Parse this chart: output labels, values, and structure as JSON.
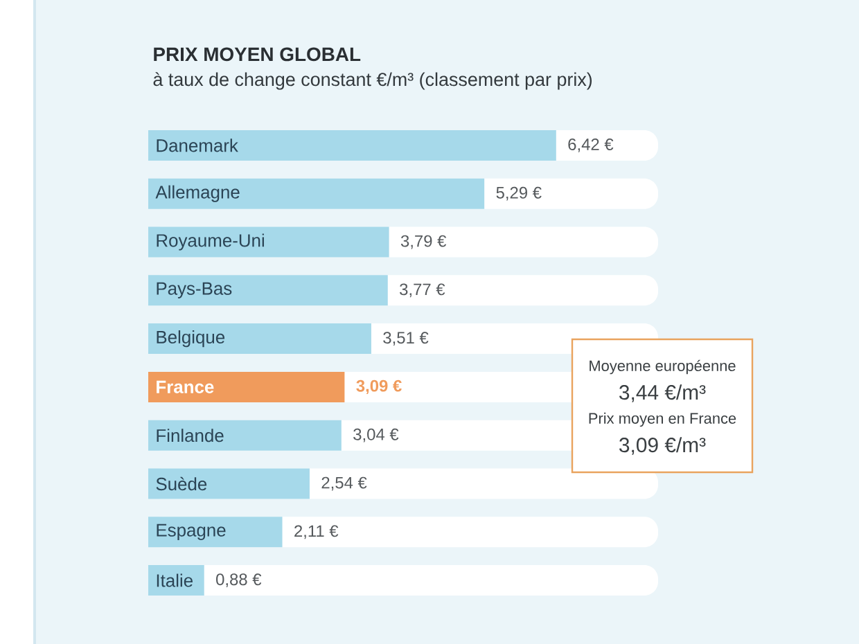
{
  "chart_data": {
    "type": "bar",
    "orientation": "horizontal",
    "title": "PRIX MOYEN GLOBAL",
    "subtitle": "à taux de change constant €/m³ (classement par prix)",
    "categories": [
      "Danemark",
      "Allemagne",
      "Royaume-Uni",
      "Pays-Bas",
      "Belgique",
      "France",
      "Finlande",
      "Suède",
      "Espagne",
      "Italie"
    ],
    "values": [
      6.42,
      5.29,
      3.79,
      3.77,
      3.51,
      3.09,
      3.04,
      2.54,
      2.11,
      0.88
    ],
    "value_labels": [
      "6,42 €",
      "5,29 €",
      "3,79 €",
      "3,77 €",
      "3,51 €",
      "3,09 €",
      "3,04 €",
      "2,54 €",
      "2,11 €",
      "0,88 €"
    ],
    "colors": [
      "#a6d9ea",
      "#a6d9ea",
      "#a6d9ea",
      "#a6d9ea",
      "#a6d9ea",
      "#f09b5c",
      "#a6d9ea",
      "#a6d9ea",
      "#a6d9ea",
      "#a6d9ea"
    ],
    "annotations": [
      "Moyenne européenne",
      "3,44 €/m³",
      "Prix moyen en France",
      "3,09 €/m³"
    ]
  }
}
